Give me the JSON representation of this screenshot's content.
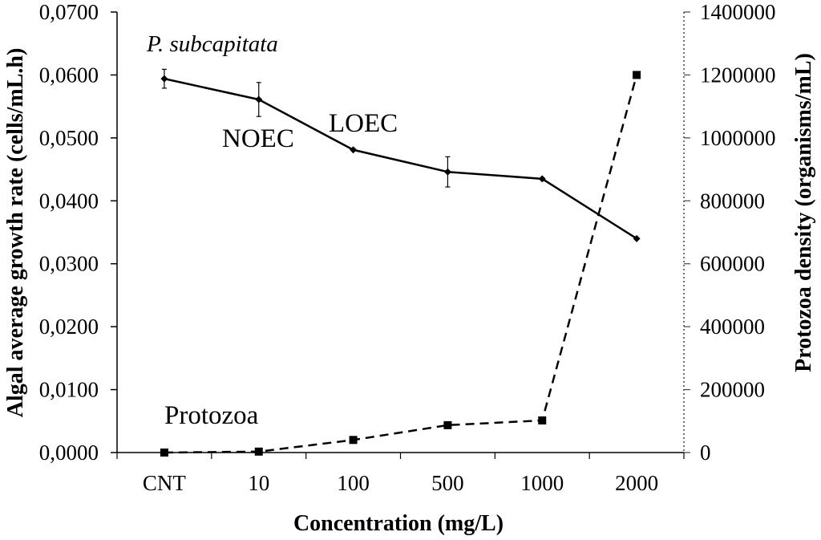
{
  "chart_data": {
    "type": "line",
    "categories": [
      "CNT",
      "10",
      "100",
      "500",
      "1000",
      "2000"
    ],
    "xlabel": "Concentration (mg/L)",
    "ylabel": "Algal average growth rate (cells/mL.h)",
    "y2label": "Protozoa density (organisms/mL)",
    "ylim": [
      0,
      0.07
    ],
    "y2lim": [
      0,
      1400000
    ],
    "yticks": [
      "0,0000",
      "0,0100",
      "0,0200",
      "0,0300",
      "0,0400",
      "0,0500",
      "0,0600",
      "0,0700"
    ],
    "y2ticks": [
      "0",
      "200000",
      "400000",
      "600000",
      "800000",
      "1000000",
      "1200000",
      "1400000"
    ],
    "grid": false,
    "series": [
      {
        "name": "P. subcapitata",
        "axis": "left",
        "line": "solid",
        "marker": "diamond",
        "color": "#000000",
        "values": [
          0.0594,
          0.0561,
          0.0481,
          0.0446,
          0.0435,
          0.034
        ],
        "error": [
          0.0015,
          0.0027,
          0,
          0.0024,
          0,
          0
        ]
      },
      {
        "name": "Protozoa",
        "axis": "right",
        "line": "dashed",
        "marker": "square",
        "color": "#000000",
        "values": [
          0,
          3000,
          40000,
          87000,
          102000,
          1200000
        ]
      }
    ],
    "annotations": [
      "NOEC",
      "LOEC"
    ]
  }
}
